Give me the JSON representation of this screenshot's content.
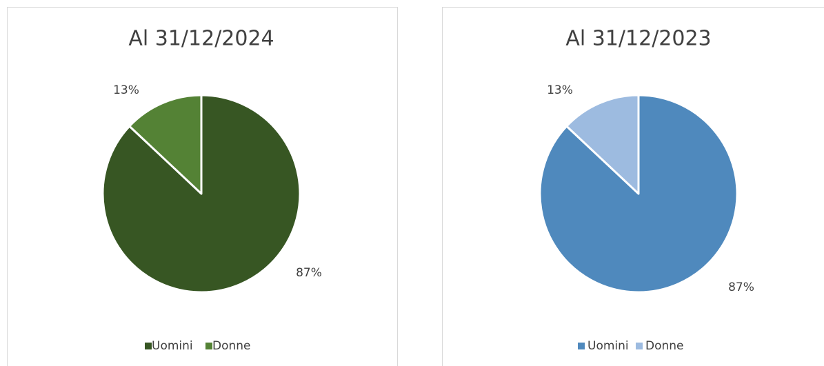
{
  "chart_data": [
    {
      "type": "pie",
      "title": "Al 31/12/2024",
      "categories": [
        "Uomini",
        "Donne"
      ],
      "values": [
        87,
        13
      ],
      "value_labels": [
        "87%",
        "13%"
      ],
      "colors": [
        "#375623",
        "#548235"
      ],
      "legend": "bottom"
    },
    {
      "type": "pie",
      "title": "Al 31/12/2023",
      "categories": [
        "Uomini",
        "Donne"
      ],
      "values": [
        87,
        13
      ],
      "value_labels": [
        "87%",
        "13%"
      ],
      "colors": [
        "#4f89bd",
        "#9dbbe0"
      ],
      "legend": "bottom"
    }
  ]
}
